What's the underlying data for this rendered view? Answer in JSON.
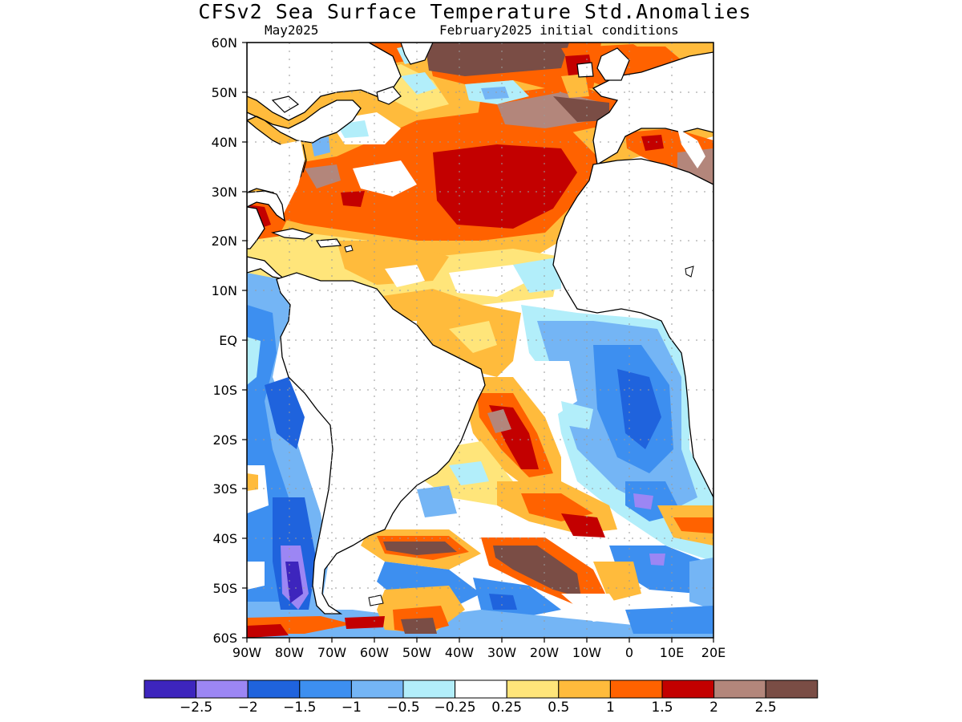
{
  "title": "CFSv2 Sea Surface Temperature Std.Anomalies",
  "subtitle_left": "May2025",
  "subtitle_right": "February2025 initial conditions",
  "lat_labels": [
    "60N",
    "50N",
    "40N",
    "30N",
    "20N",
    "10N",
    "EQ",
    "10S",
    "20S",
    "30S",
    "40S",
    "50S",
    "60S"
  ],
  "lon_labels": [
    "90W",
    "80W",
    "70W",
    "60W",
    "50W",
    "40W",
    "30W",
    "20W",
    "10W",
    "0",
    "10E",
    "20E"
  ],
  "colorbar": {
    "colors": [
      "#3d25bd",
      "#9c86f4",
      "#1f63dd",
      "#3d8ff0",
      "#74b5f5",
      "#b2eefa",
      "#ffffff",
      "#ffe57a",
      "#ffbb3c",
      "#ff6200",
      "#c30000",
      "#b3867b",
      "#7a4d45"
    ],
    "labels": [
      "-2.5",
      "-2",
      "-1.5",
      "-1",
      "-0.5",
      "-0.25",
      "0.25",
      "0.5",
      "1",
      "1.5",
      "2",
      "2.5"
    ]
  },
  "map_colors": {
    "land": "#ffffff",
    "coast": "#000000",
    "grid": "#9a9a9a"
  }
}
